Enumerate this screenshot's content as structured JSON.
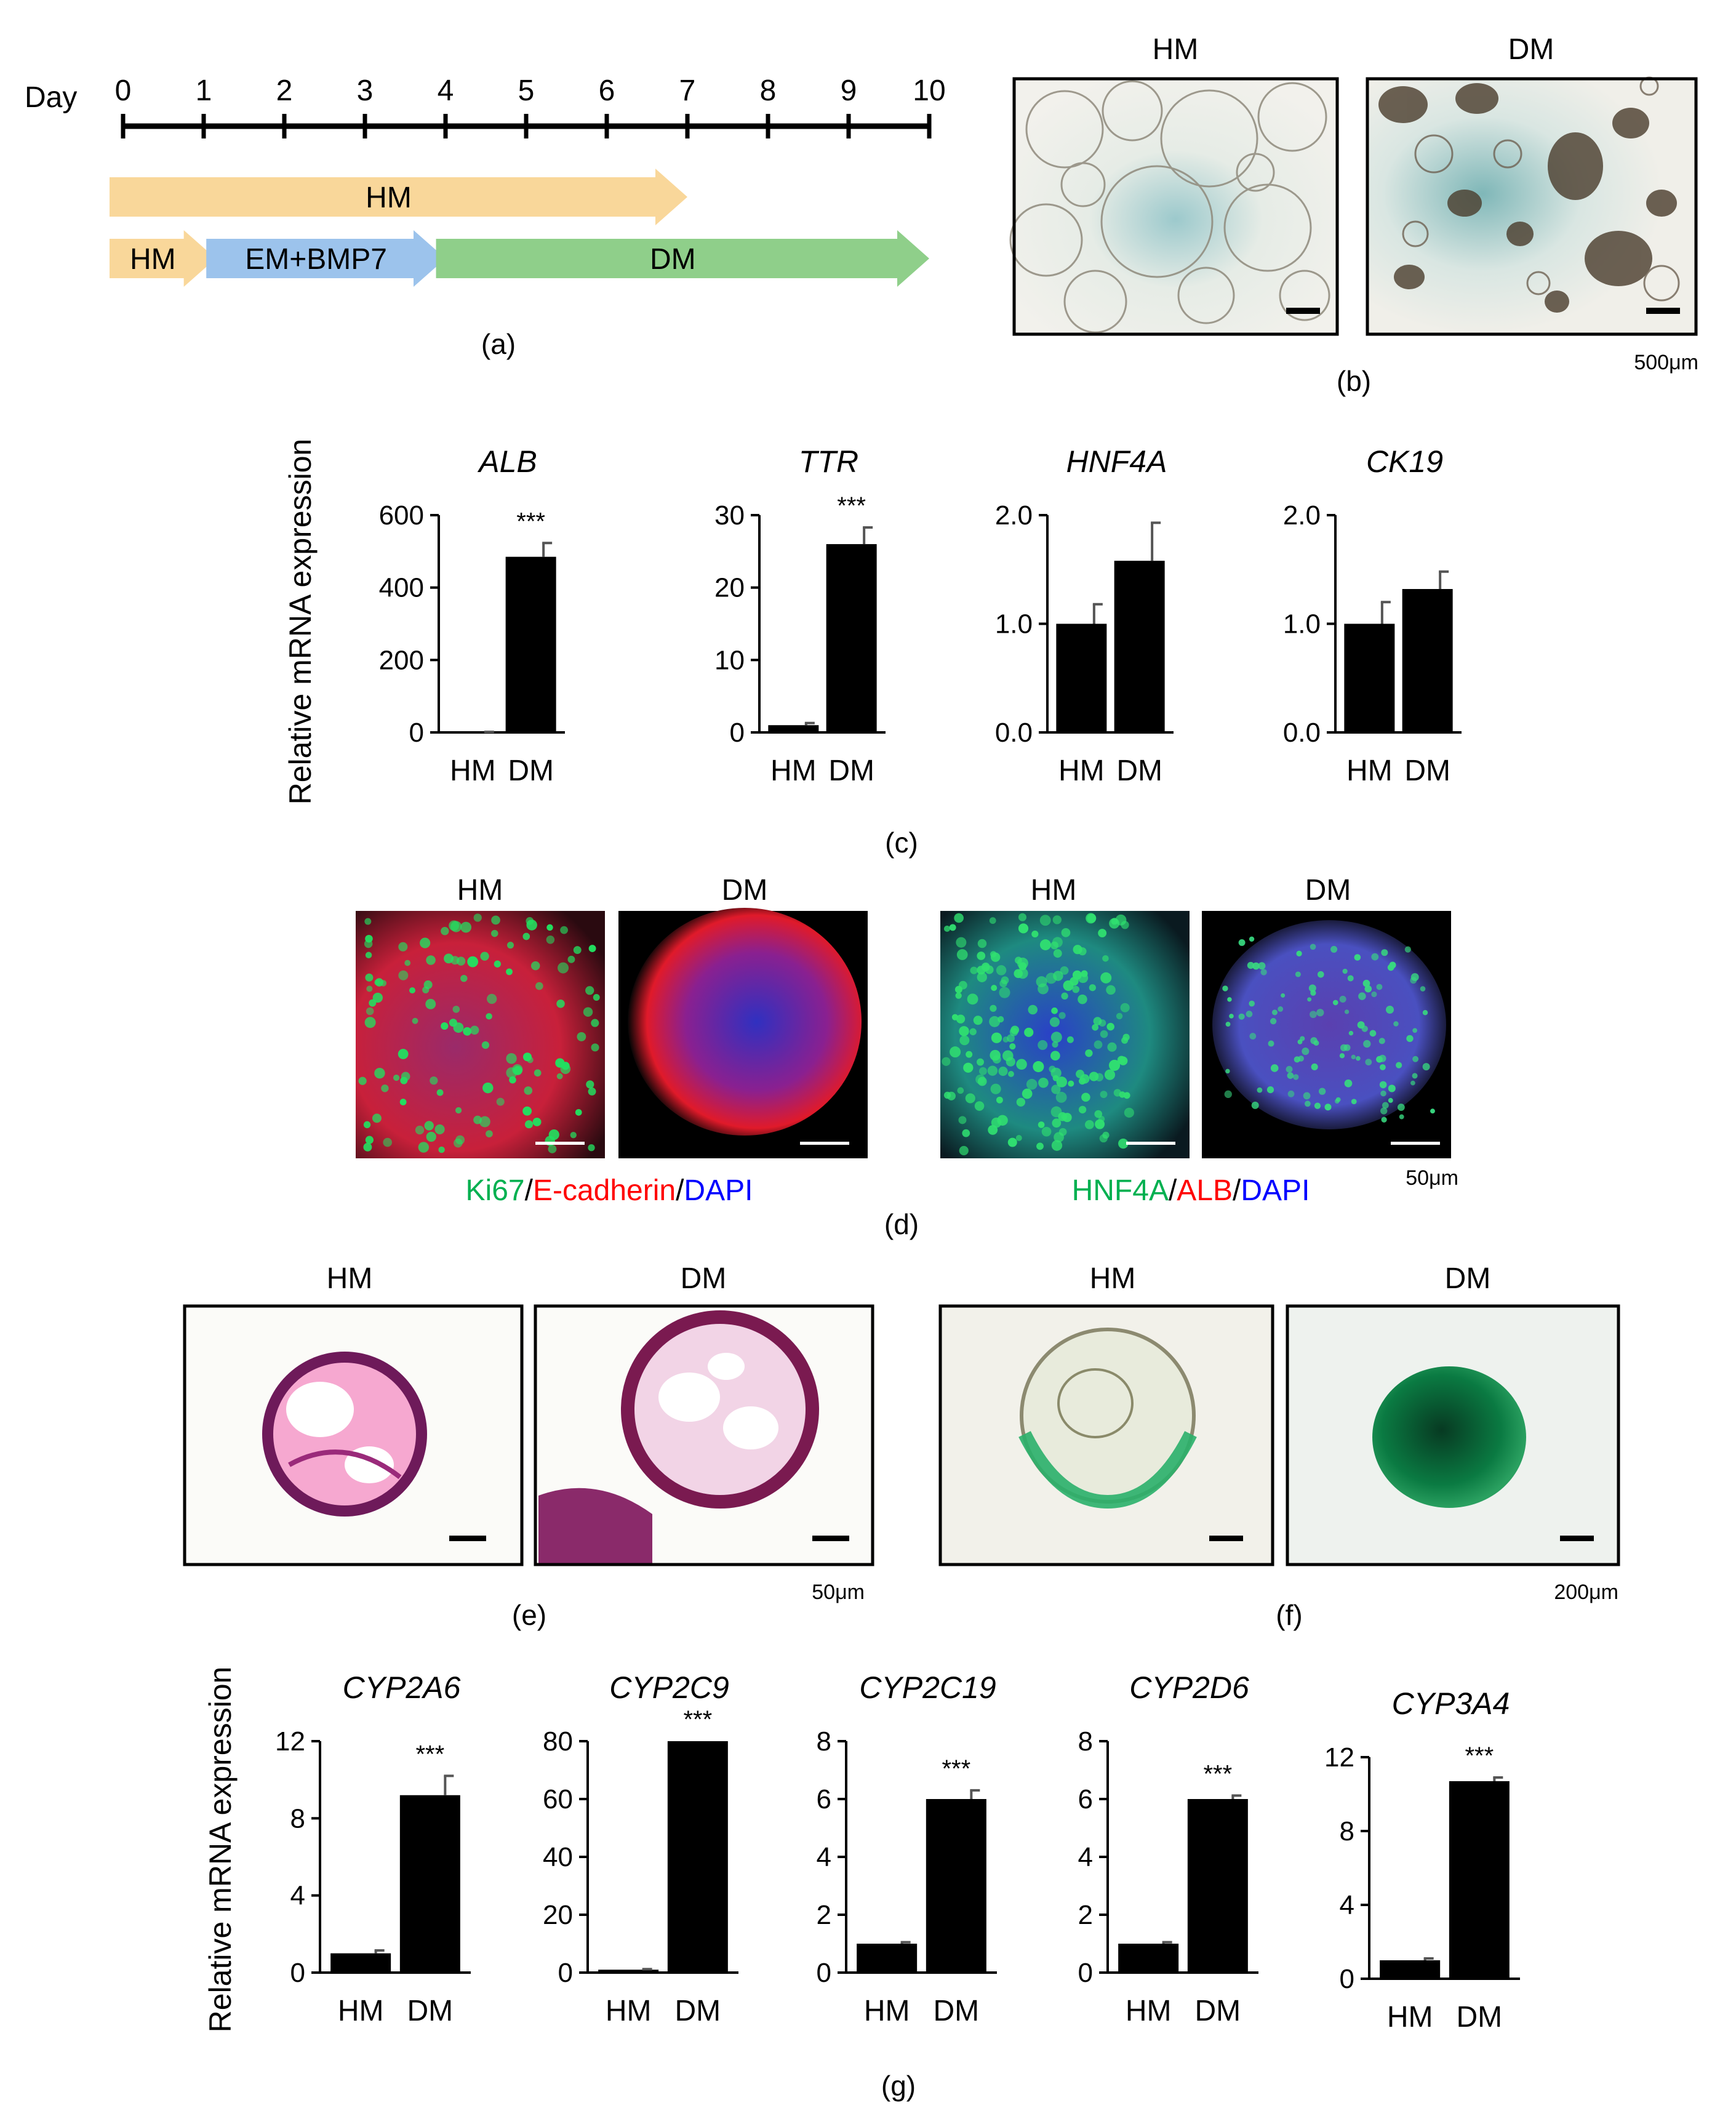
{
  "colors": {
    "hm_arrow": "#f9d79a",
    "em_arrow": "#9cc3ec",
    "dm_arrow": "#8fcf8a",
    "bar": "#000000",
    "green_stain": "#00b050",
    "red_stain": "#ff0000",
    "blue_stain": "#0000ff"
  },
  "panel_a": {
    "day_label": "Day",
    "days": [
      "0",
      "1",
      "2",
      "3",
      "4",
      "5",
      "6",
      "7",
      "8",
      "9",
      "10"
    ],
    "arrows": [
      {
        "label": "HM",
        "start_day": 0,
        "end_day": 7,
        "color_key": "hm_arrow",
        "row": 0
      },
      {
        "label": "HM",
        "start_day": 0,
        "end_day": 1.15,
        "color_key": "hm_arrow",
        "row": 1
      },
      {
        "label": "EM+BMP7",
        "start_day": 1.2,
        "end_day": 4,
        "color_key": "em_arrow",
        "row": 1
      },
      {
        "label": "DM",
        "start_day": 4.05,
        "end_day": 10,
        "color_key": "dm_arrow",
        "row": 1
      }
    ],
    "caption": "(a)"
  },
  "panel_b": {
    "titles": [
      "HM",
      "DM"
    ],
    "scale": "500μm",
    "caption": "(b)"
  },
  "panel_c": {
    "ylabel": "Relative mRNA expression",
    "caption": "(c)",
    "categories": [
      "HM",
      "DM"
    ]
  },
  "panel_d": {
    "titles": [
      "HM",
      "DM",
      "HM",
      "DM"
    ],
    "legend_left": [
      {
        "text": "Ki67",
        "color": "#00b050"
      },
      {
        "text": "/",
        "color": "#000000"
      },
      {
        "text": "E-cadherin",
        "color": "#ff0000"
      },
      {
        "text": "/",
        "color": "#000000"
      },
      {
        "text": "DAPI",
        "color": "#0000ff"
      }
    ],
    "legend_right": [
      {
        "text": "HNF4A",
        "color": "#00b050"
      },
      {
        "text": "/",
        "color": "#000000"
      },
      {
        "text": "ALB",
        "color": "#ff0000"
      },
      {
        "text": "/",
        "color": "#000000"
      },
      {
        "text": "DAPI",
        "color": "#0000ff"
      }
    ],
    "scale": "50μm",
    "caption": "(d)"
  },
  "panel_e": {
    "titles": [
      "HM",
      "DM"
    ],
    "scale": "50μm",
    "caption": "(e)"
  },
  "panel_f": {
    "titles": [
      "HM",
      "DM"
    ],
    "scale": "200μm",
    "caption": "(f)"
  },
  "panel_g": {
    "ylabel": "Relative mRNA expression",
    "caption": "(g)",
    "categories": [
      "HM",
      "DM"
    ]
  },
  "chart_data": [
    {
      "type": "bar",
      "title": "ALB",
      "categories": [
        "HM",
        "DM"
      ],
      "values": [
        1,
        485
      ],
      "errors": [
        0.5,
        38
      ],
      "significance": [
        "",
        "***"
      ],
      "ylim": [
        0,
        600
      ],
      "yticks": [
        "0",
        "200",
        "400",
        "600"
      ],
      "ytick_values": [
        0,
        200,
        400,
        600
      ]
    },
    {
      "type": "bar",
      "title": "TTR",
      "categories": [
        "HM",
        "DM"
      ],
      "values": [
        1,
        26
      ],
      "errors": [
        0.3,
        2.3
      ],
      "significance": [
        "",
        "***"
      ],
      "ylim": [
        0,
        30
      ],
      "yticks": [
        "0",
        "10",
        "20",
        "30"
      ],
      "ytick_values": [
        0,
        10,
        20,
        30
      ]
    },
    {
      "type": "bar",
      "title": "HNF4A",
      "categories": [
        "HM",
        "DM"
      ],
      "values": [
        1.0,
        1.58
      ],
      "errors": [
        0.18,
        0.35
      ],
      "significance": [
        "",
        ""
      ],
      "ylim": [
        0,
        2.0
      ],
      "yticks": [
        "0.0",
        "1.0",
        "2.0"
      ],
      "ytick_values": [
        0,
        1,
        2
      ]
    },
    {
      "type": "bar",
      "title": "CK19",
      "categories": [
        "HM",
        "DM"
      ],
      "values": [
        1.0,
        1.32
      ],
      "errors": [
        0.2,
        0.16
      ],
      "significance": [
        "",
        ""
      ],
      "ylim": [
        0,
        2.0
      ],
      "yticks": [
        "0.0",
        "1.0",
        "2.0"
      ],
      "ytick_values": [
        0,
        1,
        2
      ]
    },
    {
      "type": "bar",
      "title": "CYP2A6",
      "categories": [
        "HM",
        "DM"
      ],
      "values": [
        1.0,
        9.2
      ],
      "errors": [
        0.15,
        1.0
      ],
      "significance": [
        "",
        "***"
      ],
      "ylim": [
        0,
        12
      ],
      "yticks": [
        "0",
        "4",
        "8",
        "12"
      ],
      "ytick_values": [
        0,
        4,
        8,
        12
      ]
    },
    {
      "type": "bar",
      "title": "CYP2C9",
      "categories": [
        "HM",
        "DM"
      ],
      "values": [
        1.0,
        80
      ],
      "errors": [
        0.2,
        0
      ],
      "significance": [
        "",
        "***"
      ],
      "ylim": [
        0,
        80
      ],
      "yticks": [
        "0",
        "20",
        "40",
        "60",
        "80"
      ],
      "ytick_values": [
        0,
        20,
        40,
        60,
        80
      ]
    },
    {
      "type": "bar",
      "title": "CYP2C19",
      "categories": [
        "HM",
        "DM"
      ],
      "values": [
        1.0,
        6.0
      ],
      "errors": [
        0.05,
        0.3
      ],
      "significance": [
        "",
        "***"
      ],
      "ylim": [
        0,
        8
      ],
      "yticks": [
        "0",
        "2",
        "4",
        "6",
        "8"
      ],
      "ytick_values": [
        0,
        2,
        4,
        6,
        8
      ]
    },
    {
      "type": "bar",
      "title": "CYP2D6",
      "categories": [
        "HM",
        "DM"
      ],
      "values": [
        1.0,
        6.0
      ],
      "errors": [
        0.05,
        0.12
      ],
      "significance": [
        "",
        "***"
      ],
      "ylim": [
        0,
        8
      ],
      "yticks": [
        "0",
        "2",
        "4",
        "6",
        "8"
      ],
      "ytick_values": [
        0,
        2,
        4,
        6,
        8
      ]
    },
    {
      "type": "bar",
      "title": "CYP3A4",
      "categories": [
        "HM",
        "DM"
      ],
      "values": [
        1.0,
        10.7
      ],
      "errors": [
        0.1,
        0.2
      ],
      "significance": [
        "",
        "***"
      ],
      "ylim": [
        0,
        12
      ],
      "yticks": [
        "0",
        "4",
        "8",
        "12"
      ],
      "ytick_values": [
        0,
        4,
        8,
        12
      ]
    }
  ]
}
